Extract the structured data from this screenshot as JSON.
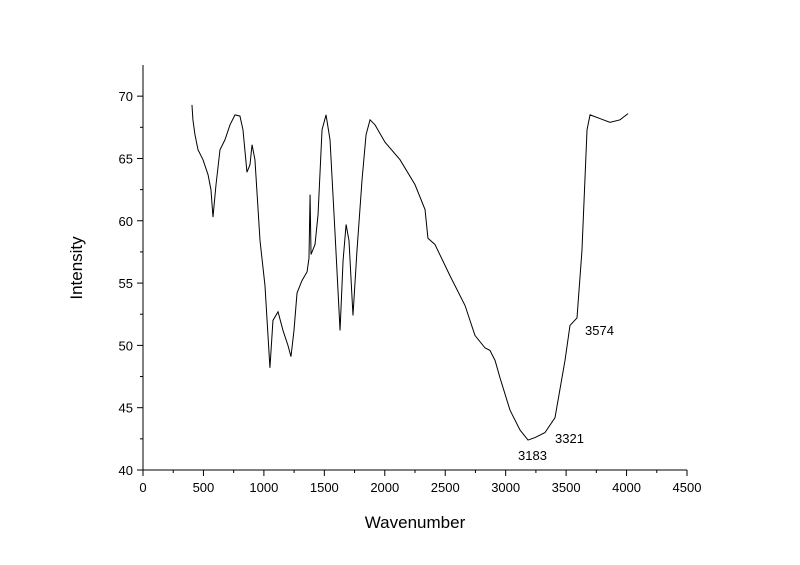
{
  "chart_data": {
    "type": "line",
    "x_label": "Wavenumber",
    "y_label": "Intensity",
    "xlim": [
      0,
      4500
    ],
    "ylim": [
      40,
      72.5
    ],
    "xticks": [
      0,
      500,
      1000,
      1500,
      2000,
      2500,
      3000,
      3500,
      4000,
      4500
    ],
    "yticks": [
      40,
      45,
      50,
      55,
      60,
      65,
      70
    ],
    "series": [
      {
        "color": "#000000",
        "x": [
          405,
          413,
          430,
          455,
          496,
          538,
          562,
          579,
          604,
          637,
          678,
          720,
          761,
          802,
          827,
          860,
          885,
          902,
          926,
          968,
          1009,
          1050,
          1075,
          1117,
          1158,
          1199,
          1224,
          1249,
          1274,
          1315,
          1357,
          1373,
          1382,
          1390,
          1423,
          1448,
          1481,
          1514,
          1547,
          1588,
          1630,
          1655,
          1680,
          1704,
          1737,
          1770,
          1812,
          1845,
          1878,
          1919,
          2002,
          2126,
          2250,
          2333,
          2357,
          2415,
          2539,
          2664,
          2746,
          2829,
          2870,
          2912,
          2953,
          3036,
          3119,
          3185,
          3243,
          3325,
          3408,
          3491,
          3532,
          3590,
          3631,
          3673,
          3698,
          3780,
          3863,
          3946,
          4012
        ],
        "values": [
          69.3,
          68.1,
          66.9,
          65.7,
          64.9,
          63.7,
          62.5,
          60.3,
          62.9,
          65.7,
          66.5,
          67.7,
          68.5,
          68.4,
          67.3,
          63.9,
          64.5,
          66.1,
          64.9,
          58.4,
          54.8,
          48.2,
          52.0,
          52.7,
          51.2,
          50.0,
          49.1,
          51.2,
          54.2,
          55.2,
          55.9,
          57.0,
          62.1,
          57.3,
          58.1,
          60.5,
          67.3,
          68.5,
          66.5,
          59.1,
          51.2,
          56.8,
          59.7,
          58.4,
          52.4,
          57.6,
          63.3,
          66.9,
          68.1,
          67.7,
          66.3,
          64.9,
          62.9,
          60.9,
          58.6,
          58.1,
          55.6,
          53.2,
          50.8,
          49.8,
          49.6,
          48.8,
          47.4,
          44.8,
          43.2,
          42.4,
          42.6,
          43.0,
          44.2,
          48.8,
          51.6,
          52.2,
          57.6,
          67.3,
          68.5,
          68.2,
          67.9,
          68.1,
          68.6
        ]
      }
    ],
    "annotations": [
      "3574",
      "3321",
      "3183"
    ]
  }
}
